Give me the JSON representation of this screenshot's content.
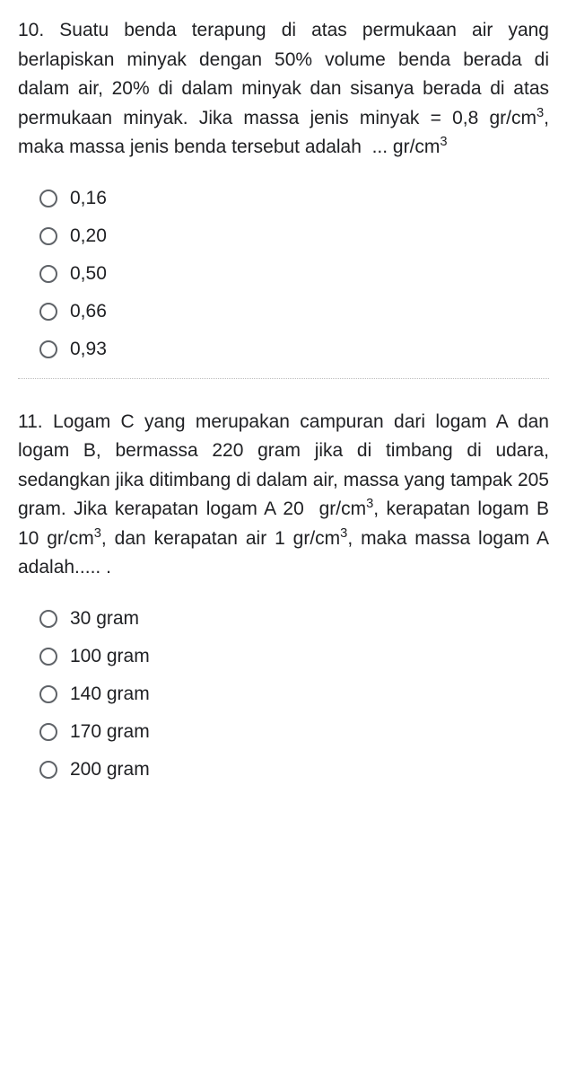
{
  "colors": {
    "text": "#202124",
    "radio_border": "#5f6368",
    "background": "#ffffff",
    "divider": "#bdbdbd"
  },
  "typography": {
    "body_fontsize": 21,
    "line_height": 1.55,
    "font_family": "Arial"
  },
  "questions": [
    {
      "number": "10",
      "text_html": "10. Suatu benda terapung di atas permukaan air yang berlapiskan minyak dengan 50% volume benda berada di dalam air, 20% di dalam minyak dan sisanya berada di atas permukaan minyak. Jika massa jenis minyak = 0,8 gr/cm<sup>3</sup>, maka massa jenis benda tersebut adalah &nbsp;... gr/cm<sup>3</sup>",
      "options": [
        {
          "label": "0,16"
        },
        {
          "label": "0,20"
        },
        {
          "label": "0,50"
        },
        {
          "label": "0,66"
        },
        {
          "label": "0,93"
        }
      ]
    },
    {
      "number": "11",
      "text_html": "11. Logam C yang merupakan campuran dari logam A dan logam B, bermassa 220 gram jika di timbang di udara, sedangkan jika ditimbang di dalam air, massa yang tampak 205 gram. Jika kerapatan logam A 20&nbsp; gr/cm<sup>3</sup>, kerapatan logam B 10 gr/cm<sup>3</sup>, dan kerapatan air 1 gr/cm<sup>3</sup>, maka massa logam A adalah..... .",
      "options": [
        {
          "label": "30 gram"
        },
        {
          "label": "100 gram"
        },
        {
          "label": "140 gram"
        },
        {
          "label": "170 gram"
        },
        {
          "label": "200 gram"
        }
      ]
    }
  ]
}
